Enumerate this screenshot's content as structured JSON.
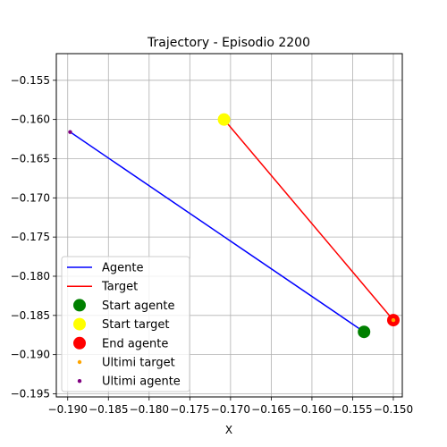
{
  "chart_data": {
    "type": "scatter",
    "title": "Trajectory - Episodio 2200",
    "xlabel": "X",
    "ylabel": "",
    "xlim": [
      -0.1914,
      -0.1489
    ],
    "ylim": [
      -0.1954,
      -0.1516
    ],
    "x_ticks": [
      -0.19,
      -0.185,
      -0.18,
      -0.175,
      -0.17,
      -0.165,
      -0.16,
      -0.155,
      -0.15
    ],
    "x_tick_labels": [
      "−0.190",
      "−0.185",
      "−0.180",
      "−0.175",
      "−0.170",
      "−0.165",
      "−0.160",
      "−0.155",
      "−0.150"
    ],
    "y_ticks": [
      -0.155,
      -0.16,
      -0.165,
      -0.17,
      -0.175,
      -0.18,
      -0.185,
      -0.19,
      -0.195
    ],
    "y_tick_labels": [
      "−0.155",
      "−0.160",
      "−0.165",
      "−0.170",
      "−0.175",
      "−0.180",
      "−0.185",
      "−0.190",
      "−0.195"
    ],
    "grid": true,
    "legend_position": "lower-left",
    "series": [
      {
        "name": "Agente",
        "kind": "line",
        "color": "#0000ff",
        "points": [
          [
            -0.1897,
            -0.1616
          ],
          [
            -0.1536,
            -0.1871
          ]
        ]
      },
      {
        "name": "Target",
        "kind": "line",
        "color": "#ff0000",
        "points": [
          [
            -0.1708,
            -0.16
          ],
          [
            -0.15,
            -0.1856
          ]
        ]
      },
      {
        "name": "Start agente",
        "kind": "marker",
        "color": "#008000",
        "size": "large",
        "points": [
          [
            -0.1536,
            -0.1871
          ]
        ]
      },
      {
        "name": "Start target",
        "kind": "marker",
        "color": "#ffff00",
        "size": "large",
        "points": [
          [
            -0.1708,
            -0.16
          ]
        ]
      },
      {
        "name": "End agente",
        "kind": "marker",
        "color": "#ff0000",
        "size": "large",
        "points": [
          [
            -0.15,
            -0.1856
          ]
        ]
      },
      {
        "name": "Ultimi target",
        "kind": "marker",
        "color": "#ffa500",
        "size": "small",
        "points": [
          [
            -0.15,
            -0.1856
          ]
        ]
      },
      {
        "name": "Ultimi agente",
        "kind": "marker",
        "color": "#800080",
        "size": "small",
        "points": [
          [
            -0.1897,
            -0.1616
          ]
        ]
      }
    ]
  }
}
